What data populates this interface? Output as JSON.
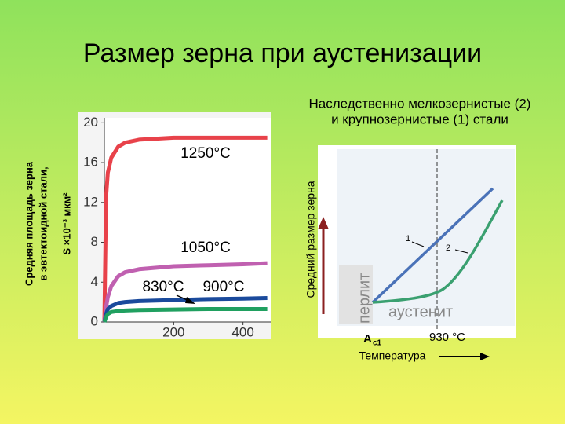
{
  "title": "Размер зерна при аустенизации",
  "chart_data": [
    {
      "type": "line",
      "ylabel": [
        "Средняя площадь зерна",
        "в эвтектоидной стали,",
        "S ×10⁻³ мкм²"
      ],
      "x": [
        0,
        5,
        10,
        20,
        40,
        60,
        100,
        200,
        300,
        400,
        470
      ],
      "xlim": [
        0,
        480
      ],
      "xticks": [
        200,
        400
      ],
      "ylim": [
        0,
        20.5
      ],
      "yticks": [
        0,
        4,
        8,
        12,
        16,
        20
      ],
      "series": [
        {
          "name": "1250°C",
          "color": "#e8424a",
          "values": [
            0,
            12.6,
            15,
            16.5,
            17.6,
            18,
            18.3,
            18.5,
            18.5,
            18.5,
            18.5
          ]
        },
        {
          "name": "1050°C",
          "color": "#c060b0",
          "values": [
            0,
            1.5,
            2.5,
            3.6,
            4.6,
            5,
            5.3,
            5.6,
            5.7,
            5.8,
            5.9
          ]
        },
        {
          "name": "900°C",
          "color": "#1a4a9c",
          "values": [
            0,
            0.8,
            1.3,
            1.6,
            1.9,
            2,
            2.1,
            2.2,
            2.3,
            2.35,
            2.4
          ]
        },
        {
          "name": "830°C",
          "color": "#20a060",
          "values": [
            0,
            0.5,
            0.8,
            1,
            1.1,
            1.15,
            1.2,
            1.25,
            1.3,
            1.3,
            1.3
          ]
        }
      ]
    }
  ],
  "schematic": {
    "title": [
      "Наследственно мелкозернистые (2)",
      "и крупнозернистые (1) стали"
    ],
    "ylabel": "Средний размер зерна",
    "pearlite": "перлит",
    "austenite": "аустенит",
    "ac1": "A",
    "ac1_sub": "c1",
    "temp_930": "930 °C",
    "xlabel": "Температура",
    "line1": "1",
    "line2": "2"
  }
}
